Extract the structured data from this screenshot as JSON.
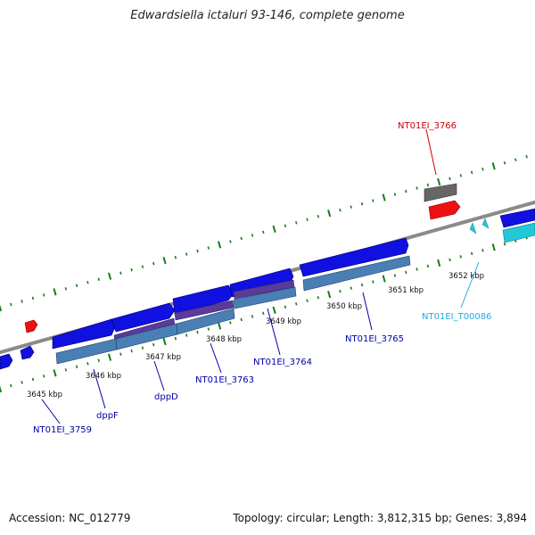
{
  "title": "Edwardsiella ictaluri 93-146, complete genome",
  "footer": {
    "accession": "Accession: NC_012779",
    "summary": "Topology: circular; Length: 3,812,315 bp; Genes: 3,894"
  },
  "colors": {
    "gene_forward": "#1010e0",
    "gene_reverse_cds": "#4a7fb5",
    "gene_reverse_overlap": "#5a3a9a",
    "pseudo_gene": "#666666",
    "rrna_highlight": "#ee1111",
    "trna": "#22c8d8",
    "backbone": "#8a8a8a",
    "tick": "#1a7a1a",
    "label_blue": "#0000aa",
    "label_red": "#cc0000",
    "label_cyan": "#22aadd"
  },
  "scale_labels": [
    "3645 kbp",
    "3646 kbp",
    "3647 kbp",
    "3648 kbp",
    "3649 kbp",
    "3650 kbp",
    "3651 kbp",
    "3652 kbp"
  ],
  "gene_labels": {
    "NT01EI_3759": "NT01EI_3759",
    "dppF": "dppF",
    "dppD": "dppD",
    "NT01EI_3763": "NT01EI_3763",
    "NT01EI_3764": "NT01EI_3764",
    "NT01EI_3765": "NT01EI_3765",
    "NT01EI_3766": "NT01EI_3766",
    "NT01EI_T00086": "NT01EI_T00086"
  }
}
